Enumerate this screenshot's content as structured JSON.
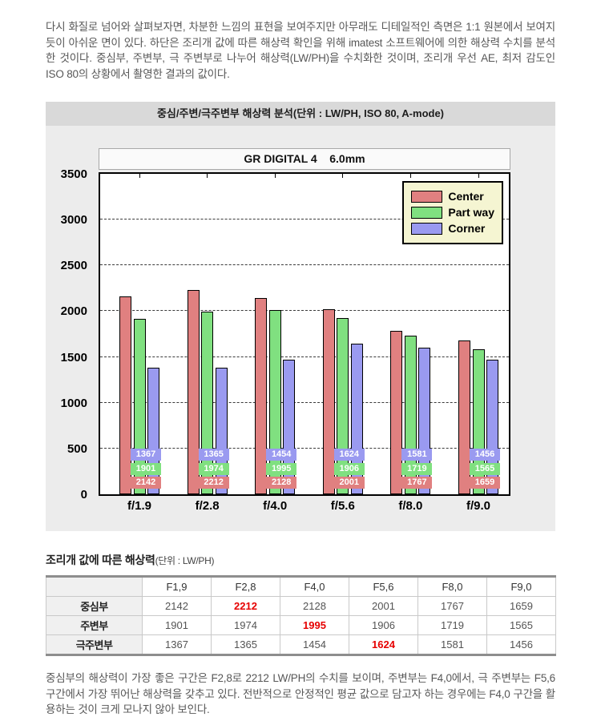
{
  "page": {
    "intro_paragraph": "다시 화질로 넘어와 살펴보자면, 차분한 느낌의 표현을 보여주지만 아무래도 디테일적인 측면은 1:1 원본에서 보여지듯이 아쉬운 면이 있다. 하단은 조리개 값에 따른 해상력 확인을 위해 imatest 소프트웨어에 의한 해상력 수치를 분석한 것이다. 중심부, 주변부, 극 주변부로 나누어 해상력(LW/PH)을 수치화한 것이며, 조리개 우선 AE, 최저 감도인 ISO 80의 상황에서 촬영한 결과의 값이다.",
    "summary_paragraph": "중심부의 해상력이 가장 좋은 구간은 F2,8로 2212 LW/PH의 수치를 보이며, 주변부는 F4,0에서, 극 주변부는 F5,6 구간에서 가장 뛰어난 해상력을 갖추고 있다. 전반적으로 안정적인 평균 값으로 담고자 하는 경우에는 F4,0 구간을 활용하는 것이 크게 모나지 않아 보인다."
  },
  "chart": {
    "header_title": "중심/주변/극주변부 해상력 분석(단위 : LW/PH, ISO 80, A-mode)",
    "inner_title": "GR DIGITAL 4    6.0mm"
  },
  "chart_data": {
    "type": "bar",
    "title": "GR DIGITAL 4 6.0mm",
    "categories": [
      "f/1.9",
      "f/2.8",
      "f/4.0",
      "f/5.6",
      "f/8.0",
      "f/9.0"
    ],
    "series": [
      {
        "name": "Center",
        "color": "#e08080",
        "values": [
          2142,
          2212,
          2128,
          2001,
          1767,
          1659
        ]
      },
      {
        "name": "Part way",
        "color": "#80e080",
        "values": [
          1901,
          1974,
          1995,
          1906,
          1719,
          1565
        ]
      },
      {
        "name": "Corner",
        "color": "#9a9af0",
        "values": [
          1367,
          1365,
          1454,
          1624,
          1581,
          1456
        ]
      }
    ],
    "xlabel": "",
    "ylabel": "",
    "ylim": [
      0,
      3500
    ],
    "ytick_step": 500,
    "grid": "horizontal-dashed",
    "legend_position": "top-right",
    "legend_bg": "#f5f5d2",
    "bar_value_labels": "stacked at bar bottoms, white bold text on series-colored background"
  },
  "table": {
    "title": "조리개 값에 따른 해상력",
    "unit_label": "(단위 : LW/PH)",
    "col_headers": [
      "",
      "F1,9",
      "F2,8",
      "F4,0",
      "F5,6",
      "F8,0",
      "F9,0"
    ],
    "rows": [
      {
        "label": "중심부",
        "values": [
          2142,
          2212,
          2128,
          2001,
          1767,
          1659
        ],
        "highlight_col": 1
      },
      {
        "label": "주변부",
        "values": [
          1901,
          1974,
          1995,
          1906,
          1719,
          1565
        ],
        "highlight_col": 2
      },
      {
        "label": "극주변부",
        "values": [
          1367,
          1365,
          1454,
          1624,
          1581,
          1456
        ],
        "highlight_col": 3
      }
    ],
    "highlight_color": "#e60000"
  }
}
